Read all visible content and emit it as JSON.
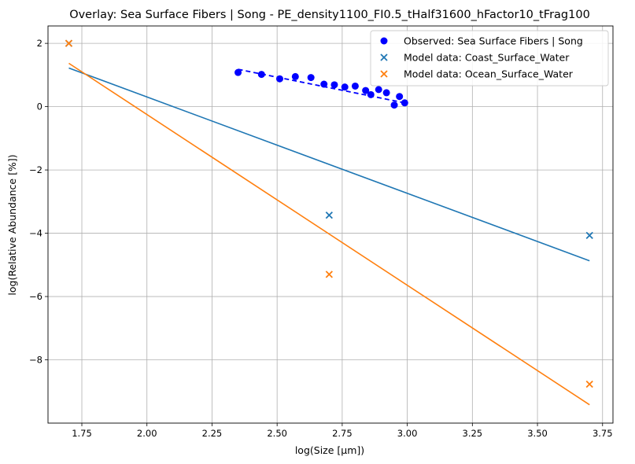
{
  "chart_data": {
    "type": "scatter",
    "title": "Overlay: Sea Surface Fibers | Song - PE_density1100_FI0.5_tHalf31600_hFactor10_tFrag100",
    "xlabel": "log(Size [µm])",
    "ylabel": "log(Relative Abundance [%])",
    "xlim": [
      1.62,
      3.79
    ],
    "ylim": [
      -10.0,
      2.55
    ],
    "xticks": [
      1.75,
      2.0,
      2.25,
      2.5,
      2.75,
      3.0,
      3.25,
      3.5,
      3.75
    ],
    "xtick_labels": [
      "1.75",
      "2.00",
      "2.25",
      "2.50",
      "2.75",
      "3.00",
      "3.25",
      "3.50",
      "3.75"
    ],
    "yticks": [
      2,
      0,
      -2,
      -4,
      -6,
      -8
    ],
    "ytick_labels": [
      "2",
      "0",
      "−2",
      "−4",
      "−6",
      "−8"
    ],
    "grid": true,
    "legend_position": "top-right",
    "series": [
      {
        "name": "Observed: Sea Surface Fibers | Song",
        "kind": "scatter",
        "marker": "circle",
        "color": "#0000ff",
        "x": [
          2.35,
          2.44,
          2.51,
          2.57,
          2.63,
          2.68,
          2.72,
          2.76,
          2.8,
          2.84,
          2.86,
          2.89,
          2.92,
          2.95,
          2.97,
          2.99
        ],
        "y": [
          1.08,
          1.02,
          0.88,
          0.95,
          0.92,
          0.71,
          0.69,
          0.62,
          0.65,
          0.51,
          0.38,
          0.54,
          0.44,
          0.05,
          0.32,
          0.12
        ]
      },
      {
        "name": "",
        "kind": "line",
        "style": "dashed",
        "color": "#0000ff",
        "x": [
          2.35,
          2.99
        ],
        "y": [
          1.18,
          0.12
        ]
      },
      {
        "name": "Model data: Coast_Surface_Water",
        "kind": "scatter",
        "marker": "x",
        "color": "#1f77b4",
        "x": [
          1.7,
          2.7,
          3.7
        ],
        "y": [
          2.0,
          -3.43,
          -4.07
        ]
      },
      {
        "name": "",
        "kind": "line",
        "style": "solid",
        "color": "#1f77b4",
        "x": [
          1.7,
          3.7
        ],
        "y": [
          1.22,
          -4.87
        ]
      },
      {
        "name": "Model data: Ocean_Surface_Water",
        "kind": "scatter",
        "marker": "x",
        "color": "#ff7f0e",
        "x": [
          1.7,
          2.7,
          3.7
        ],
        "y": [
          2.0,
          -5.3,
          -8.77
        ]
      },
      {
        "name": "",
        "kind": "line",
        "style": "solid",
        "color": "#ff7f0e",
        "x": [
          1.7,
          3.7
        ],
        "y": [
          1.37,
          -9.42
        ]
      }
    ],
    "legend": [
      {
        "label": "Observed: Sea Surface Fibers | Song",
        "marker": "circle",
        "color": "#0000ff"
      },
      {
        "label": "Model data: Coast_Surface_Water",
        "marker": "x",
        "color": "#1f77b4"
      },
      {
        "label": "Model data: Ocean_Surface_Water",
        "marker": "x",
        "color": "#ff7f0e"
      }
    ]
  }
}
